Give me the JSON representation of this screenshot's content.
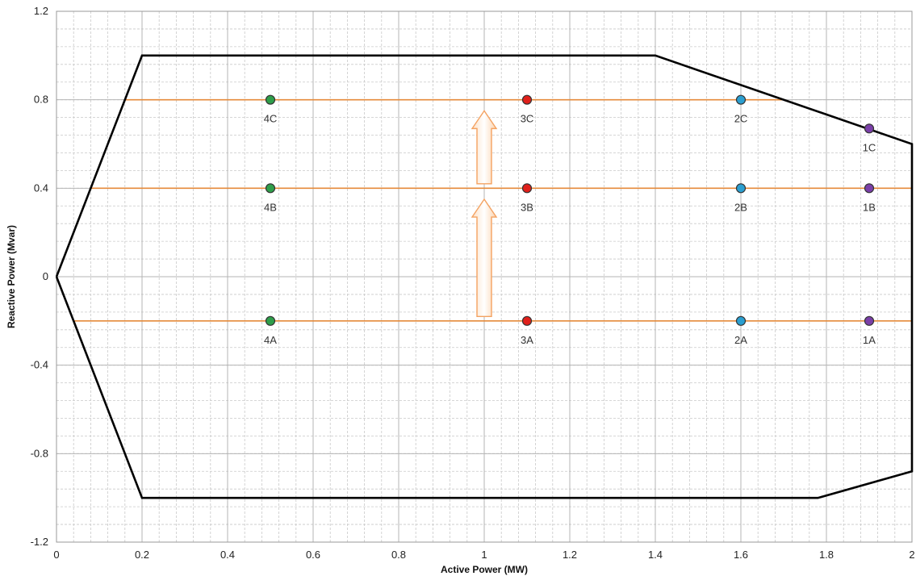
{
  "chart_data": {
    "type": "scatter",
    "xlabel": "Active Power (MW)",
    "ylabel": "Reactive Power (Mvar)",
    "xlim": [
      0,
      2
    ],
    "ylim": [
      -1.2,
      1.2
    ],
    "x_ticks": [
      "0",
      "0.2",
      "0.4",
      "0.6",
      "0.8",
      "1",
      "1.2",
      "1.4",
      "1.6",
      "1.8",
      "2"
    ],
    "y_ticks": [
      "-1.2",
      "-0.8",
      "-0.4",
      "0",
      "0.4",
      "0.8",
      "1.2"
    ],
    "grid": {
      "major": true,
      "minor": true,
      "minor_dashed": true
    },
    "capability_curve": {
      "color": "#000000",
      "points": [
        [
          0,
          0
        ],
        [
          0.2,
          1.0
        ],
        [
          1.4,
          1.0
        ],
        [
          2.0,
          0.6
        ],
        [
          2.0,
          -0.88
        ],
        [
          1.78,
          -1.0
        ],
        [
          0.2,
          -1.0
        ],
        [
          0,
          0
        ]
      ]
    },
    "reference_lines": [
      {
        "y": 0.8,
        "x_start": 0.16,
        "x_end": 1.7,
        "color": "#e58a3a"
      },
      {
        "y": 0.4,
        "x_start": 0.08,
        "x_end": 2.0,
        "color": "#e58a3a"
      },
      {
        "y": -0.2,
        "x_start": 0.04,
        "x_end": 2.0,
        "color": "#e58a3a"
      }
    ],
    "points": [
      {
        "label": "4A",
        "x": 0.5,
        "y": -0.2,
        "color": "#2e9e4a"
      },
      {
        "label": "4B",
        "x": 0.5,
        "y": 0.4,
        "color": "#2e9e4a"
      },
      {
        "label": "4C",
        "x": 0.5,
        "y": 0.8,
        "color": "#2e9e4a"
      },
      {
        "label": "3A",
        "x": 1.1,
        "y": -0.2,
        "color": "#e0201b"
      },
      {
        "label": "3B",
        "x": 1.1,
        "y": 0.4,
        "color": "#e0201b"
      },
      {
        "label": "3C",
        "x": 1.1,
        "y": 0.8,
        "color": "#e0201b"
      },
      {
        "label": "2A",
        "x": 1.6,
        "y": -0.2,
        "color": "#2b9fd0"
      },
      {
        "label": "2B",
        "x": 1.6,
        "y": 0.4,
        "color": "#2b9fd0"
      },
      {
        "label": "2C",
        "x": 1.6,
        "y": 0.8,
        "color": "#2b9fd0"
      },
      {
        "label": "1A",
        "x": 1.9,
        "y": -0.2,
        "color": "#7a3fa8"
      },
      {
        "label": "1B",
        "x": 1.9,
        "y": 0.4,
        "color": "#7a3fa8"
      },
      {
        "label": "1C",
        "x": 1.9,
        "y": 0.67,
        "color": "#7a3fa8"
      }
    ],
    "arrows": [
      {
        "x": 1.0,
        "y_from": -0.18,
        "y_to": 0.35,
        "color": "#f4a261"
      },
      {
        "x": 1.0,
        "y_from": 0.42,
        "y_to": 0.75,
        "color": "#f4a261"
      }
    ]
  }
}
